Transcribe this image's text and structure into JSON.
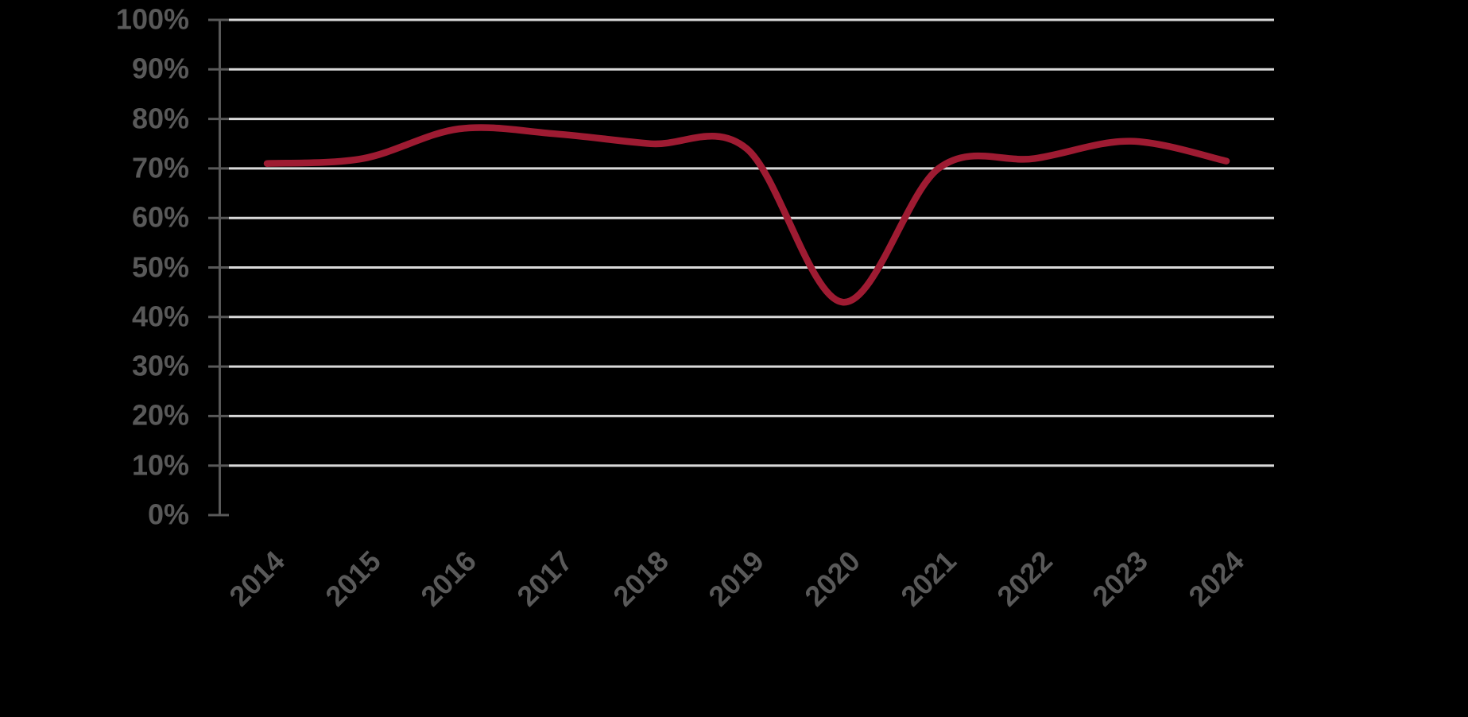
{
  "chart_data": {
    "type": "line",
    "title": "",
    "x": [
      2014,
      2015,
      2016,
      2017,
      2018,
      2019,
      2020,
      2021,
      2022,
      2023,
      2024
    ],
    "x_labels": [
      "2014",
      "2015",
      "2016",
      "2017",
      "2018",
      "2019",
      "2020",
      "2021",
      "2022",
      "2023",
      "2024"
    ],
    "values": [
      71,
      72,
      78,
      77,
      75,
      74,
      43,
      70,
      72,
      75.5,
      71.5
    ],
    "unit": "%",
    "ylim": [
      0,
      100
    ],
    "y_ticks": [
      {
        "value": 100,
        "label": "100%"
      },
      {
        "value": 90,
        "label": "90%"
      },
      {
        "value": 80,
        "label": "80%"
      },
      {
        "value": 70,
        "label": "70%"
      },
      {
        "value": 60,
        "label": "60%"
      },
      {
        "value": 50,
        "label": "50%"
      },
      {
        "value": 40,
        "label": "40%"
      },
      {
        "value": 30,
        "label": "30%"
      },
      {
        "value": 20,
        "label": "20%"
      },
      {
        "value": 10,
        "label": "10%"
      },
      {
        "value": 0,
        "label": "0%"
      }
    ],
    "grid": "horizontal gridlines at every 10% from 10% to 100%, none at 0%",
    "legend": "none",
    "line_smoothed": true,
    "line_color": "#9E1B32"
  },
  "colors": {
    "background": "#000000",
    "line": "#9E1B32",
    "gridline": "#D9D9D9",
    "axis": "#595959",
    "tick_label": "#595959"
  }
}
